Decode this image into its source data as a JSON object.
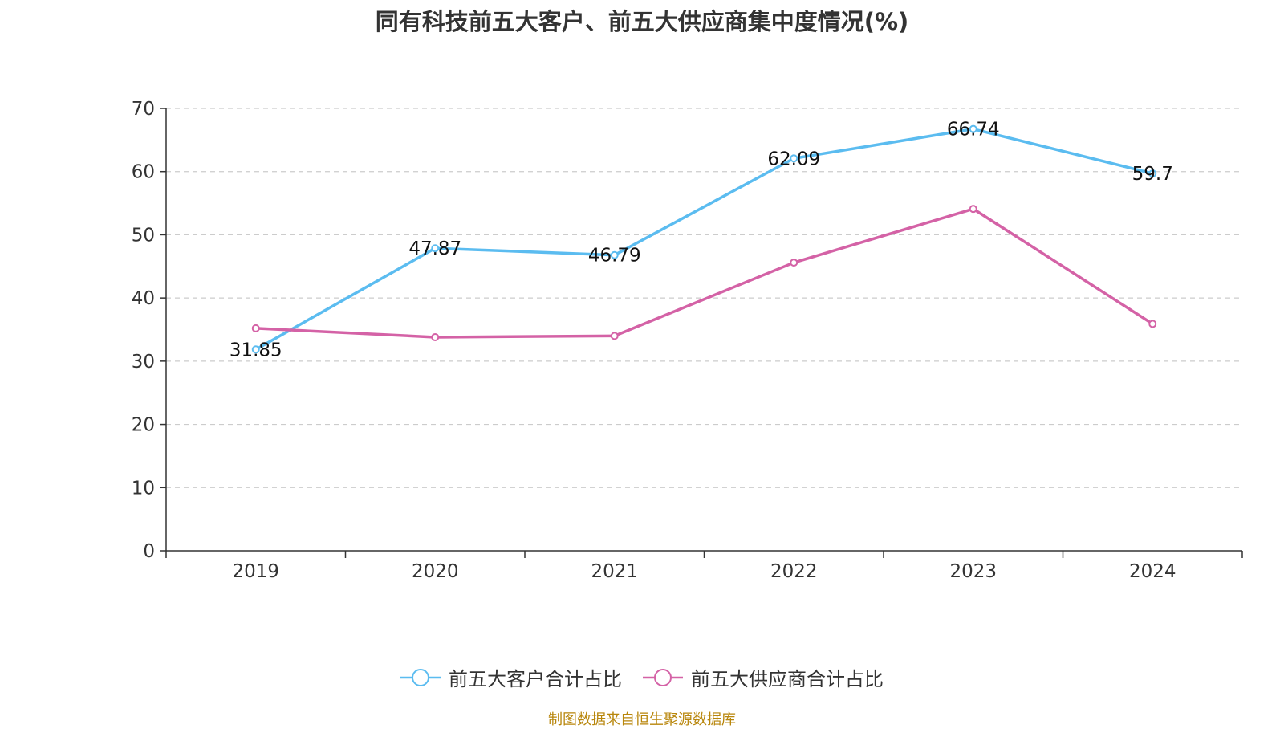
{
  "chart_data": {
    "type": "line",
    "title": "同有科技前五大客户、前五大供应商集中度情况(%)",
    "categories": [
      "2019",
      "2020",
      "2021",
      "2022",
      "2023",
      "2024"
    ],
    "ylim": [
      0,
      70
    ],
    "yticks": [
      "0",
      "10",
      "20",
      "30",
      "40",
      "50",
      "60",
      "70"
    ],
    "grid": true,
    "legend_position": "bottom",
    "series": [
      {
        "name": "前五大客户合计占比",
        "color": "#5bbcf0",
        "values": [
          31.85,
          47.87,
          46.79,
          62.09,
          66.74,
          59.7
        ],
        "labels": [
          "31.85",
          "47.87",
          "46.79",
          "62.09",
          "66.74",
          "59.7"
        ]
      },
      {
        "name": "前五大供应商合计占比",
        "color": "#d462a6",
        "values": [
          35.2,
          33.8,
          34.0,
          45.6,
          54.1,
          35.9
        ],
        "labels": []
      }
    ]
  },
  "source": "制图数据来自恒生聚源数据库"
}
